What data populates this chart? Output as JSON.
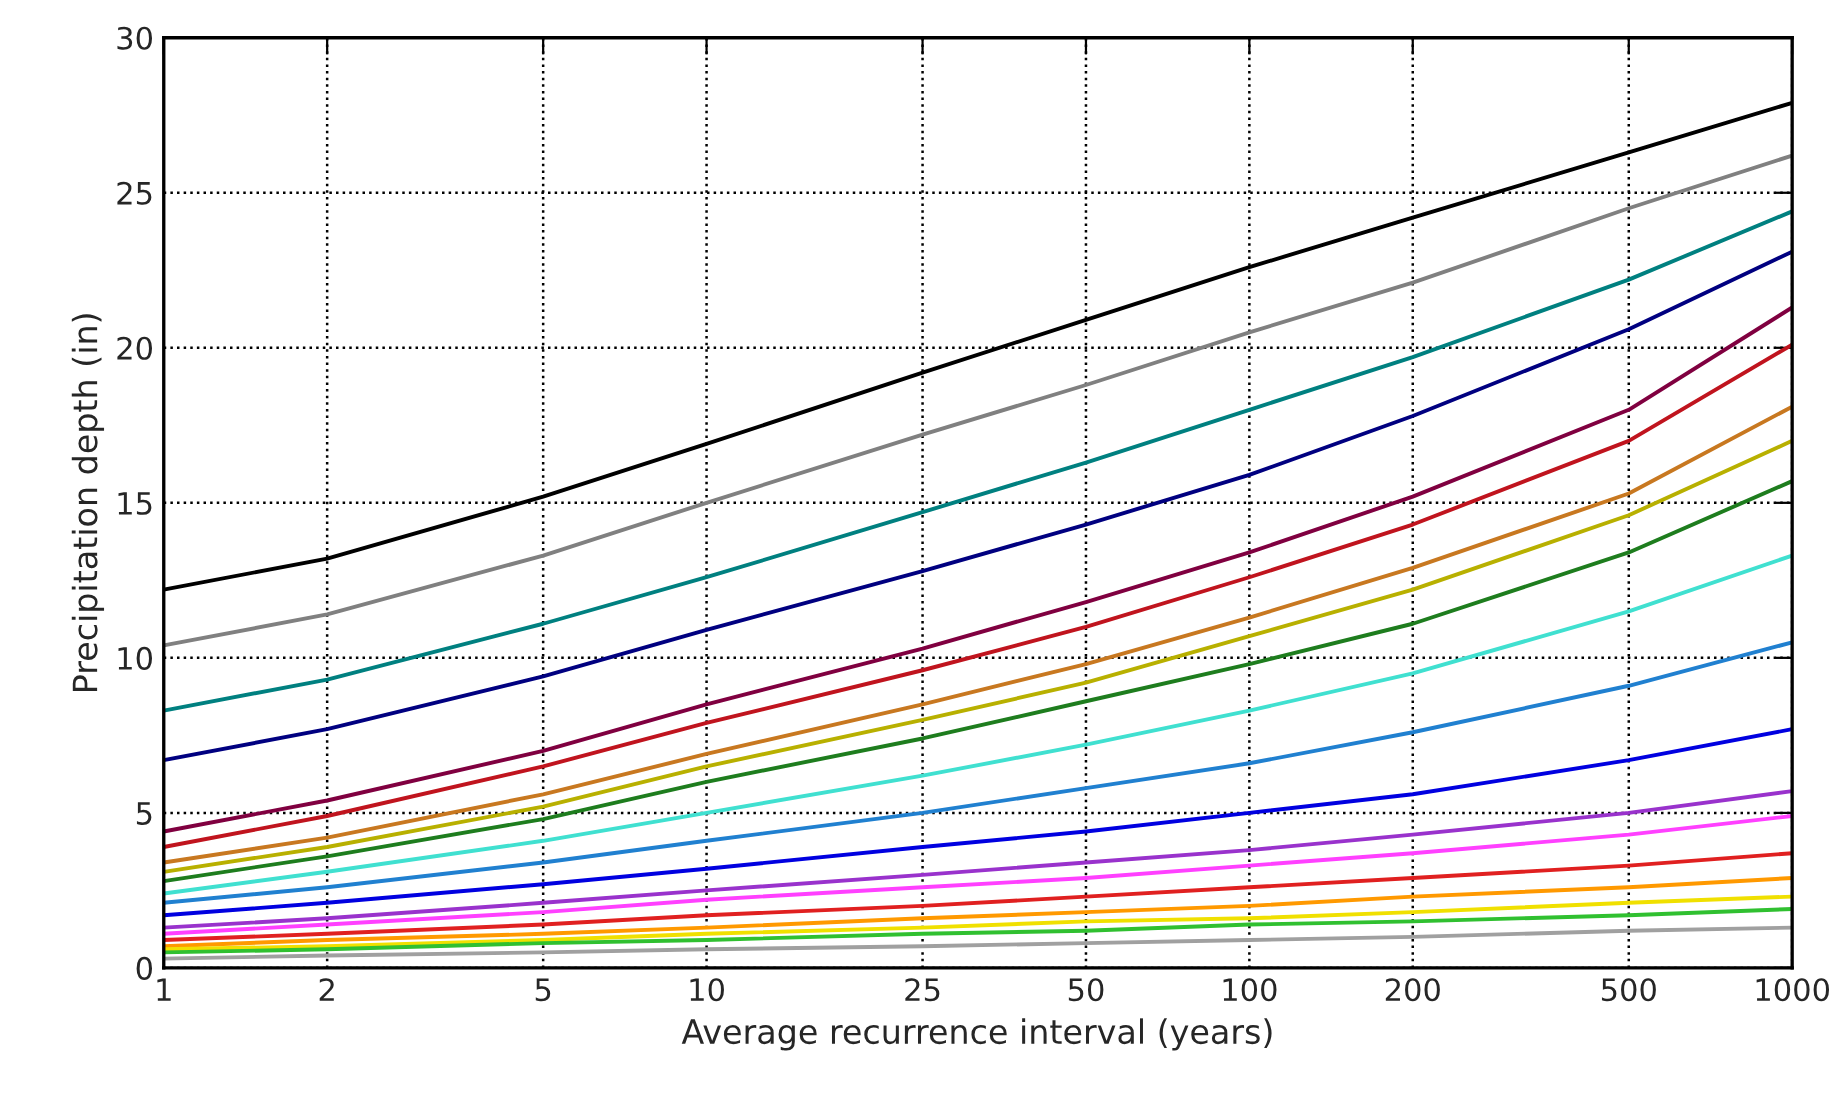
{
  "chart_data": {
    "type": "line",
    "xlabel": "Average recurrence interval (years)",
    "ylabel": "Precipitation depth (in)",
    "x": [
      1,
      2,
      5,
      10,
      25,
      50,
      100,
      200,
      500,
      1000
    ],
    "log": "x",
    "grid": true,
    "marker": "none",
    "line_style": "solid",
    "xlim": [
      1,
      1000
    ],
    "xticks": [
      1,
      2,
      5,
      10,
      25,
      50,
      100,
      200,
      500,
      1000
    ],
    "ylim": [
      0,
      30
    ],
    "yticks": [
      0,
      5,
      10,
      15,
      20,
      25,
      30
    ],
    "series": [
      {
        "color": "#000000",
        "values": [
          12.2,
          13.2,
          15.2,
          16.9,
          19.2,
          20.9,
          22.6,
          24.2,
          26.3,
          27.9
        ]
      },
      {
        "color": "#808080",
        "values": [
          10.4,
          11.4,
          13.3,
          15.0,
          17.2,
          18.8,
          20.5,
          22.1,
          24.5,
          26.2
        ]
      },
      {
        "color": "#008080",
        "values": [
          8.3,
          9.3,
          11.1,
          12.6,
          14.7,
          16.3,
          18.0,
          19.7,
          22.2,
          24.4
        ]
      },
      {
        "color": "#000080",
        "values": [
          6.7,
          7.7,
          9.4,
          10.9,
          12.8,
          14.3,
          15.9,
          17.8,
          20.6,
          23.1
        ]
      },
      {
        "color": "#800040",
        "values": [
          4.4,
          5.4,
          7.0,
          8.5,
          10.3,
          11.8,
          13.4,
          15.2,
          18.0,
          21.3
        ]
      },
      {
        "color": "#c0141e",
        "values": [
          3.9,
          4.9,
          6.5,
          7.9,
          9.6,
          11.0,
          12.6,
          14.3,
          17.0,
          20.1
        ]
      },
      {
        "color": "#c87820",
        "values": [
          3.4,
          4.2,
          5.6,
          6.9,
          8.5,
          9.8,
          11.3,
          12.9,
          15.3,
          18.1
        ]
      },
      {
        "color": "#b8b000",
        "values": [
          3.1,
          3.9,
          5.2,
          6.5,
          8.0,
          9.2,
          10.7,
          12.2,
          14.6,
          17.0
        ]
      },
      {
        "color": "#1e7d1e",
        "values": [
          2.8,
          3.6,
          4.8,
          6.0,
          7.4,
          8.6,
          9.8,
          11.1,
          13.4,
          15.7
        ]
      },
      {
        "color": "#40e0d0",
        "values": [
          2.4,
          3.1,
          4.1,
          5.0,
          6.2,
          7.2,
          8.3,
          9.5,
          11.5,
          13.3
        ]
      },
      {
        "color": "#2080d0",
        "values": [
          2.1,
          2.6,
          3.4,
          4.1,
          5.0,
          5.8,
          6.6,
          7.6,
          9.1,
          10.5
        ]
      },
      {
        "color": "#0000e0",
        "values": [
          1.7,
          2.1,
          2.7,
          3.2,
          3.9,
          4.4,
          5.0,
          5.6,
          6.7,
          7.7
        ]
      },
      {
        "color": "#9932cc",
        "values": [
          1.3,
          1.6,
          2.1,
          2.5,
          3.0,
          3.4,
          3.8,
          4.3,
          5.0,
          5.7
        ]
      },
      {
        "color": "#ff40ff",
        "values": [
          1.1,
          1.4,
          1.8,
          2.2,
          2.6,
          2.9,
          3.3,
          3.7,
          4.3,
          4.9
        ]
      },
      {
        "color": "#e02020",
        "values": [
          0.9,
          1.1,
          1.4,
          1.7,
          2.0,
          2.3,
          2.6,
          2.9,
          3.3,
          3.7
        ]
      },
      {
        "color": "#ff9900",
        "values": [
          0.7,
          0.9,
          1.1,
          1.3,
          1.6,
          1.8,
          2.0,
          2.3,
          2.6,
          2.9
        ]
      },
      {
        "color": "#f0e000",
        "values": [
          0.6,
          0.7,
          0.9,
          1.1,
          1.3,
          1.5,
          1.6,
          1.8,
          2.1,
          2.3
        ]
      },
      {
        "color": "#30c030",
        "values": [
          0.5,
          0.6,
          0.8,
          0.9,
          1.1,
          1.2,
          1.4,
          1.5,
          1.7,
          1.9
        ]
      },
      {
        "color": "#a0a0a0",
        "values": [
          0.3,
          0.4,
          0.5,
          0.6,
          0.7,
          0.8,
          0.9,
          1.0,
          1.2,
          1.3
        ]
      }
    ]
  }
}
